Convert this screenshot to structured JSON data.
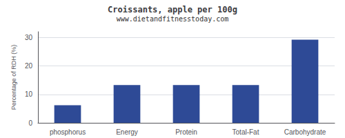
{
  "chart_data": {
    "type": "bar",
    "title": "Croissants, apple per 100g",
    "subtitle": "www.dietandfitnesstoday.com",
    "categories": [
      "phosphorus",
      "Energy",
      "Protein",
      "Total-Fat",
      "Carbohydrate"
    ],
    "values": [
      6.2,
      13.3,
      13.3,
      13.3,
      29.2
    ],
    "color": "#2e4a96",
    "ylabel": "Percentage of RDH (%)",
    "ylim": [
      0,
      32
    ],
    "yticks": [
      0,
      10,
      20,
      30
    ],
    "grid": true
  }
}
